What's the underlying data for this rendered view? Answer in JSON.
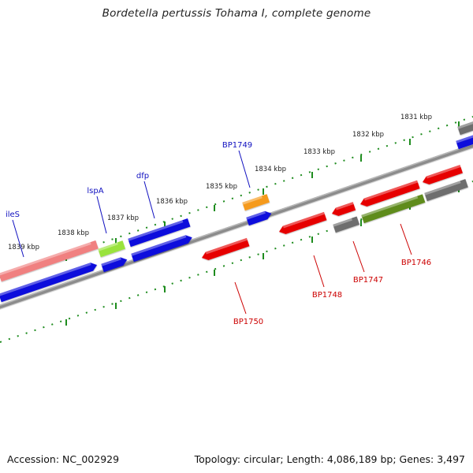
{
  "title": "Bordetella pertussis Tohama I, complete genome",
  "footer": {
    "accession": "Accession: NC_002929",
    "summary": "Topology: circular; Length: 4,086,189 bp; Genes: 3,497"
  },
  "colors": {
    "blue_gene": "#0a0adc",
    "red_gene": "#e60000",
    "pink_gene": "#f08080",
    "green_gene": "#5f8c1e",
    "lightgreen_gene": "#9ae33c",
    "gray_gene": "#6e6e6e",
    "orange_gene": "#f59a1c",
    "backbone": "#8c8c8c",
    "tick": "#1e8c1e",
    "label_blue": "#1010c0",
    "label_red": "#cc0000"
  },
  "axis": {
    "ticks": [
      {
        "label": "1831 kbp"
      },
      {
        "label": "1832 kbp"
      },
      {
        "label": "1833 kbp"
      },
      {
        "label": "1834 kbp"
      },
      {
        "label": "1835 kbp"
      },
      {
        "label": "1836 kbp"
      },
      {
        "label": "1837 kbp"
      },
      {
        "label": "1838 kbp"
      },
      {
        "label": "1839 kbp"
      }
    ]
  },
  "gene_labels": [
    {
      "name": "ileS"
    },
    {
      "name": "lspA"
    },
    {
      "name": "dfp"
    },
    {
      "name": "BP1749"
    },
    {
      "name": "BP1750"
    },
    {
      "name": "BP1748"
    },
    {
      "name": "BP1747"
    },
    {
      "name": "BP1746"
    }
  ]
}
